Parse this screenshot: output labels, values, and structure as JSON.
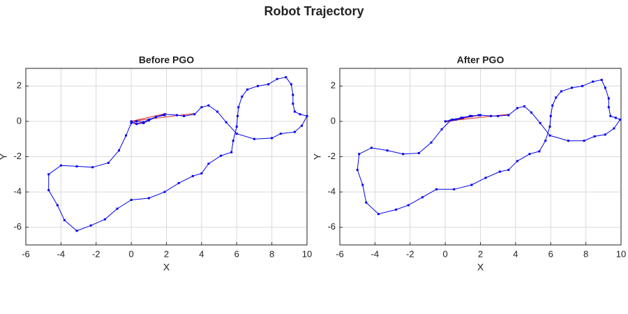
{
  "title": "Robot Trajectory",
  "chart_data": [
    {
      "type": "line",
      "title": "Before PGO",
      "xlabel": "X",
      "ylabel": "Y",
      "xlim": [
        -6,
        10
      ],
      "ylim": [
        -7,
        3
      ],
      "xticks": [
        -6,
        -4,
        -2,
        0,
        2,
        4,
        6,
        8,
        10
      ],
      "yticks": [
        -6,
        -4,
        -2,
        0,
        2
      ],
      "grid": true,
      "series": [
        {
          "color": "#d62728",
          "marker": false,
          "x": [
            0,
            2,
            null,
            0,
            3.6,
            null,
            0.1,
            0.7
          ],
          "y": [
            0,
            0.45,
            null,
            0,
            0.45,
            null,
            -0.15,
            -0.05
          ]
        },
        {
          "color": "#0000ee",
          "marker": true,
          "x": [
            0,
            0.3,
            0.7,
            1,
            1.4,
            1.9,
            2.6,
            3,
            3.6,
            4,
            4.4,
            4.9,
            5.4,
            6,
            7,
            8,
            8.5,
            9.3,
            9.7,
            10,
            9.6,
            9.3,
            9.2,
            9.2,
            9.1,
            8.8,
            8.3,
            7.8,
            7.2,
            6.6,
            6.3,
            6.1,
            6.05,
            6,
            5.8,
            5.7,
            5.1,
            4.4,
            4,
            3.5,
            2.7,
            1.9,
            1,
            0,
            -0.8,
            -1.5,
            -2.3,
            -3.1,
            -3.8,
            -4.2,
            -4.7,
            -4.7,
            -4,
            -3.1,
            -2.2,
            -1.3,
            -0.7,
            -0.3,
            0,
            0.3,
            0.7,
            1,
            1.4,
            1.9
          ],
          "y": [
            0,
            -0.15,
            -0.1,
            0.05,
            0.25,
            0.4,
            0.35,
            0.3,
            0.4,
            0.8,
            0.9,
            0.55,
            -0.05,
            -0.7,
            -1,
            -0.95,
            -0.7,
            -0.6,
            -0.25,
            0.3,
            0.4,
            0.55,
            1,
            1.5,
            2.1,
            2.5,
            2.4,
            2.1,
            2,
            1.8,
            1.4,
            0.8,
            0.3,
            -0.3,
            -1.1,
            -1.75,
            -1.95,
            -2.4,
            -2.95,
            -3.1,
            -3.5,
            -4,
            -4.35,
            -4.45,
            -4.95,
            -5.55,
            -5.9,
            -6.2,
            -5.6,
            -4.75,
            -3.9,
            -3,
            -2.5,
            -2.55,
            -2.6,
            -2.35,
            -1.65,
            -0.8,
            -0.1,
            0,
            -0.05,
            0.1,
            0.25,
            0.35
          ]
        }
      ]
    },
    {
      "type": "line",
      "title": "After PGO",
      "xlabel": "X",
      "ylabel": "Y",
      "xlim": [
        -6,
        10
      ],
      "ylim": [
        -7,
        3
      ],
      "xticks": [
        -6,
        -4,
        -2,
        0,
        2,
        4,
        6,
        8,
        10
      ],
      "yticks": [
        -6,
        -4,
        -2,
        0,
        2
      ],
      "grid": true,
      "series": [
        {
          "color": "#d62728",
          "marker": false,
          "x": [
            0,
            3.6,
            null,
            0.3,
            2,
            null,
            0,
            1
          ],
          "y": [
            0,
            0.4,
            null,
            0.05,
            0.35,
            null,
            -0.05,
            0.15
          ]
        },
        {
          "color": "#0000ee",
          "marker": true,
          "x": [
            0,
            0.4,
            0.9,
            1.4,
            2,
            2.6,
            3,
            3.6,
            4.1,
            4.5,
            4.9,
            5.4,
            5.95,
            7,
            7.9,
            8.5,
            9.1,
            9.6,
            9.95,
            9.7,
            9.4,
            9.3,
            9.3,
            9.1,
            8.9,
            8.4,
            7.8,
            7.2,
            6.6,
            6.3,
            6.1,
            6,
            5.95,
            5.7,
            5.35,
            4.8,
            4.1,
            3.6,
            3.1,
            2.3,
            1.5,
            0.5,
            -0.5,
            -1.3,
            -2.1,
            -2.8,
            -3.8,
            -4.5,
            -4.7,
            -5,
            -4.9,
            -4.2,
            -3.3,
            -2.4,
            -1.5,
            -0.8,
            -0.2,
            0.3,
            0.6,
            1,
            1.5,
            1.9
          ],
          "y": [
            0,
            0.1,
            0.2,
            0.3,
            0.35,
            0.3,
            0.3,
            0.35,
            0.75,
            0.85,
            0.5,
            -0.1,
            -0.8,
            -1.1,
            -1.1,
            -0.85,
            -0.75,
            -0.4,
            0.1,
            0.2,
            0.3,
            0.8,
            1.3,
            1.9,
            2.35,
            2.25,
            2,
            1.9,
            1.7,
            1.35,
            0.9,
            0.3,
            -0.3,
            -1.1,
            -1.7,
            -1.85,
            -2.25,
            -2.75,
            -2.85,
            -3.2,
            -3.6,
            -3.85,
            -3.85,
            -4.3,
            -4.75,
            -5,
            -5.25,
            -4.6,
            -3.6,
            -2.75,
            -1.85,
            -1.5,
            -1.65,
            -1.85,
            -1.8,
            -1.2,
            -0.45,
            0.05,
            0.1,
            0.2,
            0.3,
            0.35
          ]
        }
      ]
    }
  ]
}
